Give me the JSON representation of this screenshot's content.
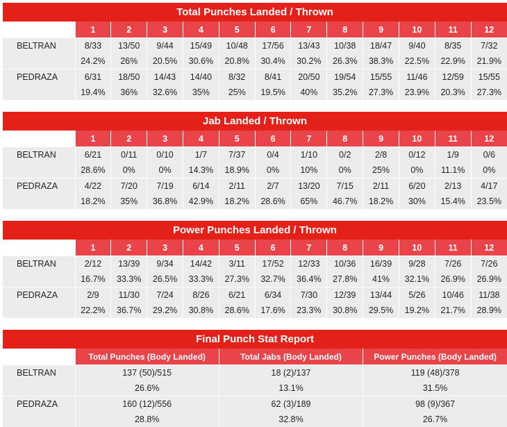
{
  "round_labels": [
    "1",
    "2",
    "3",
    "4",
    "5",
    "6",
    "7",
    "8",
    "9",
    "10",
    "11",
    "12"
  ],
  "total": {
    "title": "Total Punches Landed / Thrown",
    "beltran": {
      "name": "BELTRAN",
      "landed": [
        "8/33",
        "13/50",
        "9/44",
        "15/49",
        "10/48",
        "17/56",
        "13/43",
        "10/38",
        "18/47",
        "9/40",
        "8/35",
        "7/32"
      ],
      "pct": [
        "24.2%",
        "26%",
        "20.5%",
        "30.6%",
        "20.8%",
        "30.4%",
        "30.2%",
        "26.3%",
        "38.3%",
        "22.5%",
        "22.9%",
        "21.9%"
      ]
    },
    "pedraza": {
      "name": "PEDRAZA",
      "landed": [
        "6/31",
        "18/50",
        "14/43",
        "14/40",
        "8/32",
        "8/41",
        "20/50",
        "19/54",
        "15/55",
        "11/46",
        "12/59",
        "15/55"
      ],
      "pct": [
        "19.4%",
        "36%",
        "32.6%",
        "35%",
        "25%",
        "19.5%",
        "40%",
        "35.2%",
        "27.3%",
        "23.9%",
        "20.3%",
        "27.3%"
      ]
    }
  },
  "jab": {
    "title": "Jab Landed / Thrown",
    "beltran": {
      "name": "BELTRAN",
      "landed": [
        "6/21",
        "0/11",
        "0/10",
        "1/7",
        "7/37",
        "0/4",
        "1/10",
        "0/2",
        "2/8",
        "0/12",
        "1/9",
        "0/6"
      ],
      "pct": [
        "28.6%",
        "0%",
        "0%",
        "14.3%",
        "18.9%",
        "0%",
        "10%",
        "0%",
        "25%",
        "0%",
        "11.1%",
        "0%"
      ]
    },
    "pedraza": {
      "name": "PEDRAZA",
      "landed": [
        "4/22",
        "7/20",
        "7/19",
        "6/14",
        "2/11",
        "2/7",
        "13/20",
        "7/15",
        "2/11",
        "6/20",
        "2/13",
        "4/17"
      ],
      "pct": [
        "18.2%",
        "35%",
        "36.8%",
        "42.9%",
        "18.2%",
        "28.6%",
        "65%",
        "46.7%",
        "18.2%",
        "30%",
        "15.4%",
        "23.5%"
      ]
    }
  },
  "power": {
    "title": "Power Punches Landed / Thrown",
    "beltran": {
      "name": "BELTRAN",
      "landed": [
        "2/12",
        "13/39",
        "9/34",
        "14/42",
        "3/11",
        "17/52",
        "12/33",
        "10/36",
        "16/39",
        "9/28",
        "7/26",
        "7/26"
      ],
      "pct": [
        "16.7%",
        "33.3%",
        "26.5%",
        "33.3%",
        "27.3%",
        "32.7%",
        "36.4%",
        "27.8%",
        "41%",
        "32.1%",
        "26.9%",
        "26.9%"
      ]
    },
    "pedraza": {
      "name": "PEDRAZA",
      "landed": [
        "2/9",
        "11/30",
        "7/24",
        "8/26",
        "6/21",
        "6/34",
        "7/30",
        "12/39",
        "13/44",
        "5/26",
        "10/46",
        "11/38"
      ],
      "pct": [
        "22.2%",
        "36.7%",
        "29.2%",
        "30.8%",
        "28.6%",
        "17.6%",
        "23.3%",
        "30.8%",
        "29.5%",
        "19.2%",
        "21.7%",
        "28.9%"
      ]
    }
  },
  "final": {
    "title": "Final Punch Stat Report",
    "headers": [
      "Total Punches (Body Landed)",
      "Total Jabs (Body Landed)",
      "Power Punches (Body Landed)"
    ],
    "beltran": {
      "name": "BELTRAN",
      "values": [
        "137 (50)/515",
        "18 (2)/137",
        "119 (48)/378"
      ],
      "pct": [
        "26.6%",
        "13.1%",
        "31.5%"
      ]
    },
    "pedraza": {
      "name": "PEDRAZA",
      "values": [
        "160 (12)/556",
        "62 (3)/189",
        "98 (9)/367"
      ],
      "pct": [
        "28.8%",
        "32.8%",
        "26.7%"
      ]
    }
  }
}
